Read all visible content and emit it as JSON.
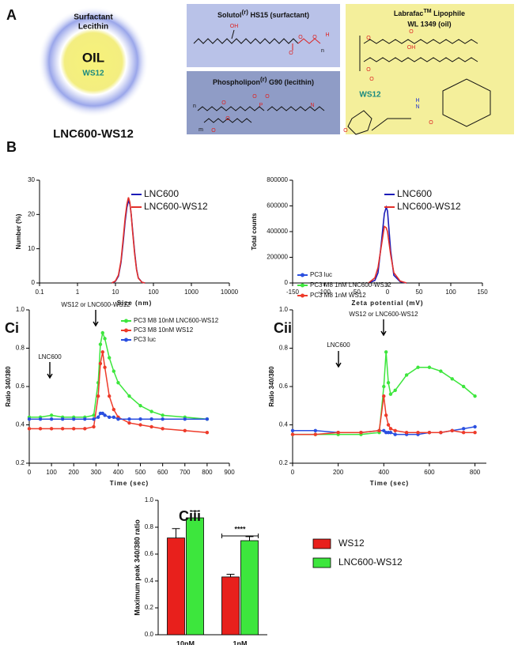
{
  "panel_labels": [
    "A",
    "B",
    "Ci",
    "Cii",
    "Ciii"
  ],
  "panel_a": {
    "particle": {
      "shell": [
        "Surfactant",
        "Lecithin"
      ],
      "core": "OIL",
      "drug": "WS12",
      "caption": "LNC600-WS12"
    },
    "solutol": {
      "name": "Solutol",
      "sup": "(r)",
      "rest": " HS15 (surfactant)",
      "atoms": [
        "OH",
        "O",
        "O",
        "O",
        "H",
        "n"
      ]
    },
    "phospholipon": {
      "name": "Phospholipon",
      "sup": "(r)",
      "rest": " G90 (lecithin)",
      "atoms": [
        "n",
        "O",
        "O",
        "P",
        "O",
        "O",
        "N",
        "m",
        "O"
      ]
    },
    "labrafac": {
      "name": "Labrafac",
      "sup": "TM",
      "rest": " Lipophile",
      "line2": "WL 1349 (oil)",
      "atoms": [
        "O",
        "O",
        "OH",
        "O",
        "O"
      ],
      "drug": "WS12",
      "drug_atoms": [
        "N",
        "H",
        "O",
        "O"
      ]
    }
  },
  "chart_data": [
    {
      "type": "line",
      "xscale": "log",
      "xlabel": "Size (nm)",
      "ylabel": "Number (%)",
      "legend": "upper right",
      "x": [
        8,
        10,
        12,
        14,
        16,
        18,
        20,
        22,
        24,
        26,
        28,
        32,
        36,
        40,
        50,
        60
      ],
      "series": [
        {
          "name": "LNC600",
          "color": "#1c1cb8",
          "values": [
            0,
            0.5,
            2,
            6,
            12,
            18,
            22,
            24,
            23,
            20,
            16,
            9,
            4,
            1.5,
            0.2,
            0
          ]
        },
        {
          "name": "LNC600-WS12",
          "color": "#e3302a",
          "values": [
            0,
            0.6,
            2.3,
            6.5,
            13,
            19,
            23,
            25,
            23.5,
            20,
            15.5,
            8.5,
            3.8,
            1.4,
            0.2,
            0
          ]
        }
      ],
      "xlim": [
        0.1,
        10000
      ],
      "xticks": [
        0.1,
        1,
        10,
        100,
        1000,
        10000
      ],
      "ylim": [
        0,
        30
      ],
      "yticks": [
        0,
        10,
        20,
        30
      ]
    },
    {
      "type": "line",
      "xlabel": "Zeta potential (mV)",
      "ylabel": "Total counts",
      "legend": "upper right",
      "x": [
        -30,
        -20,
        -15,
        -10,
        -5,
        -2,
        0,
        5,
        10,
        20,
        30
      ],
      "series": [
        {
          "name": "LNC600",
          "color": "#1c1cb8",
          "values": [
            0,
            20000,
            80000,
            300000,
            540000,
            590000,
            560000,
            250000,
            60000,
            10000,
            0
          ]
        },
        {
          "name": "LNC600-WS12",
          "color": "#e3302a",
          "values": [
            0,
            40000,
            120000,
            280000,
            440000,
            430000,
            400000,
            220000,
            80000,
            15000,
            0
          ]
        }
      ],
      "xlim": [
        -150,
        150
      ],
      "xticks": [
        -150,
        -100,
        -50,
        0,
        50,
        100,
        150
      ],
      "ylim": [
        0,
        800000
      ],
      "yticks": [
        0,
        200000,
        400000,
        600000,
        800000
      ]
    },
    {
      "type": "line",
      "markers": true,
      "xlabel": "Time (sec)",
      "ylabel": "Ratio 340/380",
      "legend": "upper right",
      "annotations": [
        "LNC600",
        "WS12 or LNC600-WS12"
      ],
      "x": [
        0,
        50,
        100,
        150,
        200,
        250,
        290,
        310,
        320,
        330,
        340,
        360,
        380,
        400,
        450,
        500,
        550,
        600,
        700,
        800
      ],
      "series": [
        {
          "name": "PC3 M8 10nM LNC600-WS12",
          "color": "#3de63d",
          "values": [
            0.44,
            0.44,
            0.45,
            0.44,
            0.44,
            0.44,
            0.45,
            0.62,
            0.82,
            0.88,
            0.85,
            0.75,
            0.68,
            0.62,
            0.55,
            0.5,
            0.47,
            0.45,
            0.44,
            0.43
          ]
        },
        {
          "name": "PC3 M8 10nM WS12",
          "color": "#ee3b2a",
          "values": [
            0.38,
            0.38,
            0.38,
            0.38,
            0.38,
            0.38,
            0.39,
            0.55,
            0.72,
            0.78,
            0.7,
            0.55,
            0.48,
            0.44,
            0.41,
            0.4,
            0.39,
            0.38,
            0.37,
            0.36
          ]
        },
        {
          "name": "PC3 luc",
          "color": "#2a4fe0",
          "values": [
            0.43,
            0.43,
            0.43,
            0.43,
            0.43,
            0.43,
            0.43,
            0.44,
            0.46,
            0.46,
            0.45,
            0.44,
            0.44,
            0.43,
            0.43,
            0.43,
            0.43,
            0.43,
            0.43,
            0.43
          ]
        }
      ],
      "xlim": [
        0,
        900
      ],
      "xticks": [
        0,
        100,
        200,
        300,
        400,
        500,
        600,
        700,
        800,
        900
      ],
      "ylim": [
        0.2,
        1
      ],
      "yticks": [
        0.2,
        0.4,
        0.6,
        0.8,
        {
          "value": 1,
          "label": "1.0"
        }
      ]
    },
    {
      "type": "line",
      "markers": true,
      "xlabel": "Time (sec)",
      "ylabel": "Ratio 340/380",
      "legend": "above",
      "annotations": [
        "WS12 or LNC600-WS12",
        "LNC600"
      ],
      "x": [
        0,
        100,
        200,
        300,
        380,
        400,
        410,
        420,
        430,
        450,
        500,
        550,
        600,
        650,
        700,
        750,
        800
      ],
      "series": [
        {
          "name": "PC3 luc",
          "color": "#2a4fe0",
          "values": [
            0.37,
            0.37,
            0.36,
            0.36,
            0.37,
            0.37,
            0.36,
            0.36,
            0.36,
            0.35,
            0.35,
            0.35,
            0.36,
            0.36,
            0.37,
            0.38,
            0.39
          ]
        },
        {
          "name": "PC3 M8 1nM LNC600-WS12",
          "color": "#3de63d",
          "values": [
            0.35,
            0.35,
            0.35,
            0.35,
            0.36,
            0.6,
            0.78,
            0.62,
            0.56,
            0.58,
            0.66,
            0.7,
            0.7,
            0.68,
            0.64,
            0.6,
            0.55
          ]
        },
        {
          "name": "PC3 M8 1nM WS12",
          "color": "#ee3b2a",
          "values": [
            0.35,
            0.35,
            0.36,
            0.36,
            0.37,
            0.55,
            0.45,
            0.4,
            0.38,
            0.37,
            0.36,
            0.36,
            0.36,
            0.36,
            0.37,
            0.36,
            0.36
          ]
        }
      ],
      "xlim": [
        0,
        850
      ],
      "xticks": [
        0,
        200,
        400,
        600,
        800
      ],
      "ylim": [
        0.2,
        1
      ],
      "yticks": [
        0.2,
        0.4,
        0.6,
        0.8,
        {
          "value": 1,
          "label": "1.0"
        }
      ]
    },
    {
      "type": "bar",
      "ylabel": "Maximum peak 340/380 ratio",
      "legend": "right",
      "annotations": [
        "****"
      ],
      "categories": [
        "10nM",
        "1nM"
      ],
      "series": [
        {
          "name": "WS12",
          "color": "#e8201c",
          "values": [
            0.72,
            0.43
          ],
          "errors": [
            0.07,
            0.02
          ]
        },
        {
          "name": "LNC600-WS12",
          "color": "#3de63d",
          "values": [
            0.87,
            0.7
          ],
          "errors": [
            0.05,
            0.03
          ]
        }
      ],
      "ylim": [
        0,
        1
      ],
      "yticks": [
        {
          "value": 0,
          "label": "0.0"
        },
        0.2,
        0.4,
        0.6,
        0.8,
        {
          "value": 1,
          "label": "1.0"
        }
      ]
    }
  ]
}
